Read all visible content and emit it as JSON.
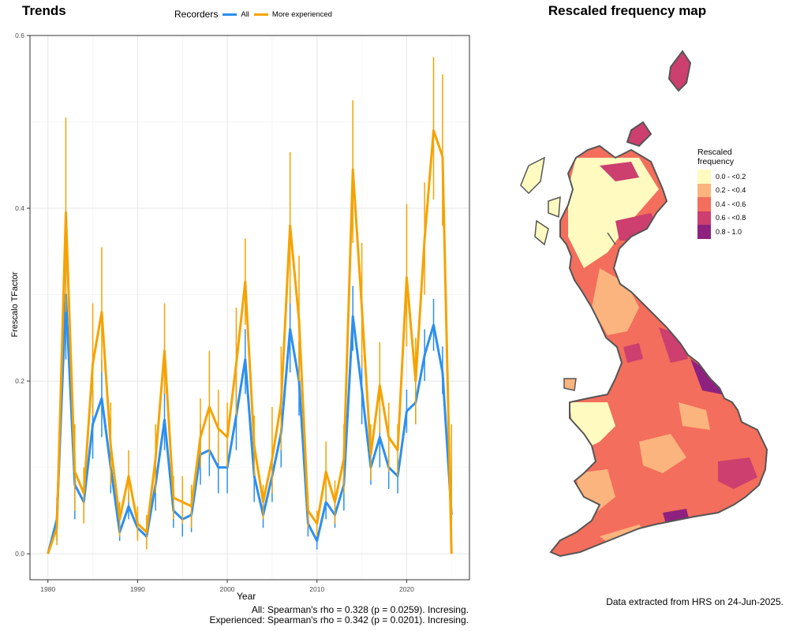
{
  "left_title": "Trends",
  "right_title": "Rescaled frequency map",
  "legend": {
    "title": "Recorders",
    "items": [
      {
        "label": "All",
        "color": "#2B8FF0"
      },
      {
        "label": "More experienced",
        "color": "#F5A300"
      }
    ]
  },
  "chart_data": {
    "type": "line",
    "xlabel": "Year",
    "ylabel": "Frescalo TFactor",
    "xlim": [
      1978,
      2027
    ],
    "ylim": [
      -0.03,
      0.6
    ],
    "xticks": [
      1980,
      1990,
      2000,
      2010,
      2020
    ],
    "yticks": [
      0.0,
      0.2,
      0.4,
      0.6
    ],
    "grid": true,
    "legend_position": "top",
    "x": [
      1980,
      1981,
      1982,
      1983,
      1984,
      1985,
      1986,
      1987,
      1988,
      1989,
      1990,
      1991,
      1992,
      1993,
      1994,
      1995,
      1996,
      1997,
      1998,
      1999,
      2000,
      2001,
      2002,
      2003,
      2004,
      2005,
      2006,
      2007,
      2008,
      2009,
      2010,
      2011,
      2012,
      2013,
      2014,
      2015,
      2016,
      2017,
      2018,
      2019,
      2020,
      2021,
      2022,
      2023,
      2024,
      2025
    ],
    "series": [
      {
        "name": "All",
        "color": "#2B8FF0",
        "values": [
          0.0,
          0.04,
          0.3,
          0.08,
          0.06,
          0.15,
          0.18,
          0.1,
          0.025,
          0.055,
          0.03,
          0.02,
          0.08,
          0.155,
          0.05,
          0.04,
          0.045,
          0.115,
          0.12,
          0.1,
          0.1,
          0.16,
          0.225,
          0.09,
          0.045,
          0.09,
          0.14,
          0.26,
          0.2,
          0.035,
          0.015,
          0.06,
          0.045,
          0.08,
          0.275,
          0.19,
          0.1,
          0.135,
          0.1,
          0.09,
          0.165,
          0.175,
          0.23,
          0.265,
          0.21,
          0.045
        ],
        "lower": [
          0.0,
          0.015,
          0.225,
          0.04,
          0.04,
          0.11,
          0.135,
          0.07,
          0.015,
          0.04,
          0.02,
          0.01,
          0.05,
          0.12,
          0.03,
          0.02,
          0.025,
          0.08,
          0.09,
          0.07,
          0.07,
          0.12,
          0.185,
          0.06,
          0.03,
          0.06,
          0.1,
          0.21,
          0.16,
          0.02,
          0.005,
          0.04,
          0.03,
          0.05,
          0.235,
          0.15,
          0.08,
          0.1,
          0.075,
          0.07,
          0.14,
          0.15,
          0.2,
          0.235,
          0.185,
          0.03
        ],
        "upper": [
          0.0,
          0.065,
          0.375,
          0.115,
          0.08,
          0.19,
          0.225,
          0.13,
          0.035,
          0.07,
          0.04,
          0.03,
          0.11,
          0.19,
          0.07,
          0.06,
          0.065,
          0.15,
          0.15,
          0.13,
          0.13,
          0.2,
          0.26,
          0.12,
          0.06,
          0.12,
          0.18,
          0.31,
          0.245,
          0.05,
          0.025,
          0.08,
          0.06,
          0.11,
          0.31,
          0.23,
          0.12,
          0.17,
          0.125,
          0.11,
          0.19,
          0.2,
          0.26,
          0.295,
          0.24,
          0.065
        ]
      },
      {
        "name": "More experienced",
        "color": "#F5A300",
        "values": [
          0.0,
          0.03,
          0.395,
          0.095,
          0.07,
          0.22,
          0.28,
          0.125,
          0.04,
          0.09,
          0.035,
          0.025,
          0.11,
          0.235,
          0.065,
          0.06,
          0.055,
          0.135,
          0.17,
          0.145,
          0.135,
          0.22,
          0.315,
          0.125,
          0.06,
          0.11,
          0.175,
          0.38,
          0.27,
          0.05,
          0.035,
          0.095,
          0.06,
          0.11,
          0.445,
          0.285,
          0.115,
          0.195,
          0.135,
          0.12,
          0.32,
          0.2,
          0.365,
          0.49,
          0.46,
          0.0
        ],
        "lower": [
          0.0,
          0.01,
          0.28,
          0.05,
          0.035,
          0.16,
          0.21,
          0.08,
          0.02,
          0.06,
          0.015,
          0.005,
          0.07,
          0.185,
          0.04,
          0.035,
          0.03,
          0.1,
          0.115,
          0.105,
          0.1,
          0.16,
          0.265,
          0.09,
          0.04,
          0.07,
          0.12,
          0.29,
          0.2,
          0.03,
          0.02,
          0.06,
          0.035,
          0.07,
          0.36,
          0.215,
          0.085,
          0.14,
          0.095,
          0.09,
          0.24,
          0.15,
          0.3,
          0.41,
          0.38,
          0.0
        ],
        "upper": [
          0.0,
          0.05,
          0.505,
          0.15,
          0.1,
          0.29,
          0.355,
          0.175,
          0.06,
          0.12,
          0.055,
          0.045,
          0.15,
          0.29,
          0.09,
          0.09,
          0.08,
          0.18,
          0.235,
          0.19,
          0.175,
          0.285,
          0.365,
          0.16,
          0.08,
          0.17,
          0.24,
          0.465,
          0.345,
          0.07,
          0.05,
          0.13,
          0.085,
          0.15,
          0.525,
          0.36,
          0.15,
          0.245,
          0.175,
          0.15,
          0.405,
          0.25,
          0.43,
          0.575,
          0.555,
          0.15
        ]
      }
    ]
  },
  "stats": {
    "all": "All: Spearman's rho = 0.328 (p = 0.0259). Incresing.",
    "experienced": "Experienced: Spearman's rho = 0.342 (p = 0.0201). Incresing."
  },
  "map_legend": {
    "title_line1": "Rescaled",
    "title_line2": "frequency",
    "items": [
      {
        "label": "0.0 - <0.2",
        "color": "#FFFBC0"
      },
      {
        "label": "0.2 - <0.4",
        "color": "#FCB47E"
      },
      {
        "label": "0.4 - <0.6",
        "color": "#F36E5C"
      },
      {
        "label": "0.6 - <0.8",
        "color": "#CC3F6E"
      },
      {
        "label": "0.8 - 1.0",
        "color": "#8E2180"
      }
    ]
  },
  "credit": "Data extracted from HRS on 24-Jun-2025."
}
